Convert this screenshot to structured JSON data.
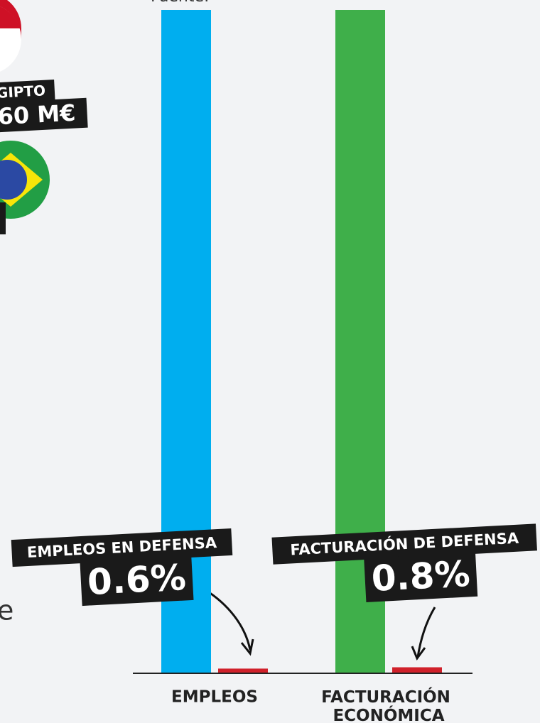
{
  "fragments": {
    "source": "Fuente:",
    "country": "GIPTO",
    "amount": "60 M€",
    "letter": "e"
  },
  "chart_data": {
    "type": "bar",
    "categories": [
      "EMPLEOS",
      "FACTURACIÓN ECONÓMICA"
    ],
    "series": [
      {
        "colors": [
          "#00aeef",
          "#3faf4a"
        ],
        "values": [
          100,
          100
        ]
      },
      {
        "color": "#d0202a",
        "values": [
          0.6,
          0.8
        ],
        "value_labels": [
          "0.6%",
          "0.8%"
        ]
      }
    ],
    "annotations": [
      "EMPLEOS EN DEFENSA",
      "FACTURACIÓN DE DEFENSA"
    ],
    "ylim": [
      0,
      100
    ]
  }
}
